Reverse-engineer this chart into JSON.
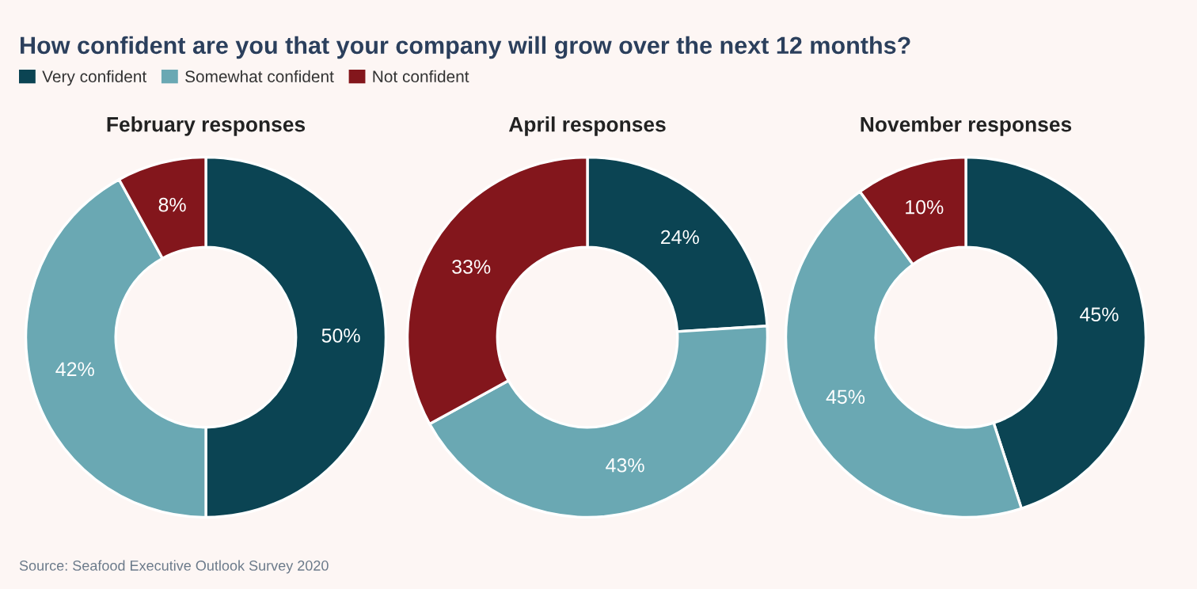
{
  "chart_data": [
    {
      "type": "other",
      "title": "How confident are you that your company will grow over the next 12 months?",
      "annotations": [
        "Source: Seafood Executive Outlook Survey 2020"
      ]
    },
    {
      "type": "donut",
      "title": "February responses",
      "categories": [
        "Very confident",
        "Somewhat confident",
        "Not confident"
      ],
      "values": [
        50,
        42,
        8
      ],
      "value_labels": [
        "50%",
        "42%",
        "8%"
      ],
      "colors": [
        "#0b4453",
        "#6aa8b3",
        "#83161c"
      ],
      "legend": "top"
    },
    {
      "type": "donut",
      "title": "April responses",
      "categories": [
        null,
        null,
        null
      ],
      "values": [
        24,
        43,
        33
      ],
      "value_labels": [
        "24%",
        "43%",
        "33%"
      ],
      "colors": [
        "#0b4453",
        "#6aa8b3",
        "#83161c"
      ]
    },
    {
      "type": "donut",
      "title": "November responses",
      "categories": [
        null,
        null,
        null
      ],
      "values": [
        45,
        45,
        10
      ],
      "value_labels": [
        "45%",
        "45%",
        "10%"
      ],
      "colors": [
        "#0b4453",
        "#6aa8b3",
        "#83161c"
      ]
    }
  ]
}
